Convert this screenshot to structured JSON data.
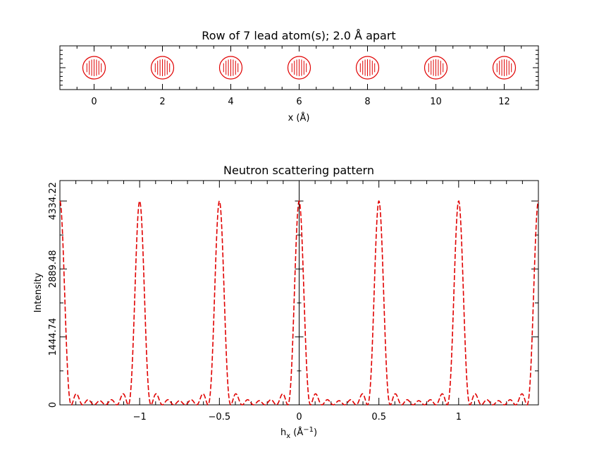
{
  "colors": {
    "background": "#ffffff",
    "axes": "#000000",
    "data": "#e00000"
  },
  "chart_data": [
    {
      "type": "scatter",
      "title": "Row of 7 lead atom(s); 2.0 Å apart",
      "xlabel": "x (Å)",
      "ylabel": "",
      "xlim": [
        -1,
        13
      ],
      "xticks": [
        "0",
        "2",
        "4",
        "6",
        "8",
        "10",
        "12"
      ],
      "marker": "circle-hatched",
      "series": [
        {
          "x": [
            0,
            2,
            4,
            6,
            8,
            10,
            12
          ],
          "y": [
            0,
            0,
            0,
            0,
            0,
            0,
            0
          ]
        }
      ],
      "grid": false
    },
    {
      "type": "line",
      "title": "Neutron scattering pattern",
      "xlabel": "h",
      "xlabel_sub": "x",
      "xlabel_unit_pre": " (Å",
      "xlabel_unit_sup": "−1",
      "xlabel_unit_post": ")",
      "ylabel": "Intensity",
      "xlim": [
        -1.5,
        1.5
      ],
      "ylim": [
        0,
        4334.22
      ],
      "xticks": [
        {
          "v": -1,
          "label": "−1"
        },
        {
          "v": -0.5,
          "label": "−0.5"
        },
        {
          "v": 0,
          "label": "0"
        },
        {
          "v": 0.5,
          "label": "0.5"
        },
        {
          "v": 1,
          "label": "1"
        }
      ],
      "yticks": [
        {
          "v": 0,
          "label": "0"
        },
        {
          "v": 1444.74,
          "label": "1444.74"
        },
        {
          "v": 2889.48,
          "label": "2889.48"
        },
        {
          "v": 4334.22,
          "label": "4334.22"
        }
      ],
      "atoms": 7,
      "peak_period": 0.5,
      "peak_max": 4334.22,
      "line_style": "dashed",
      "grid": false
    }
  ]
}
